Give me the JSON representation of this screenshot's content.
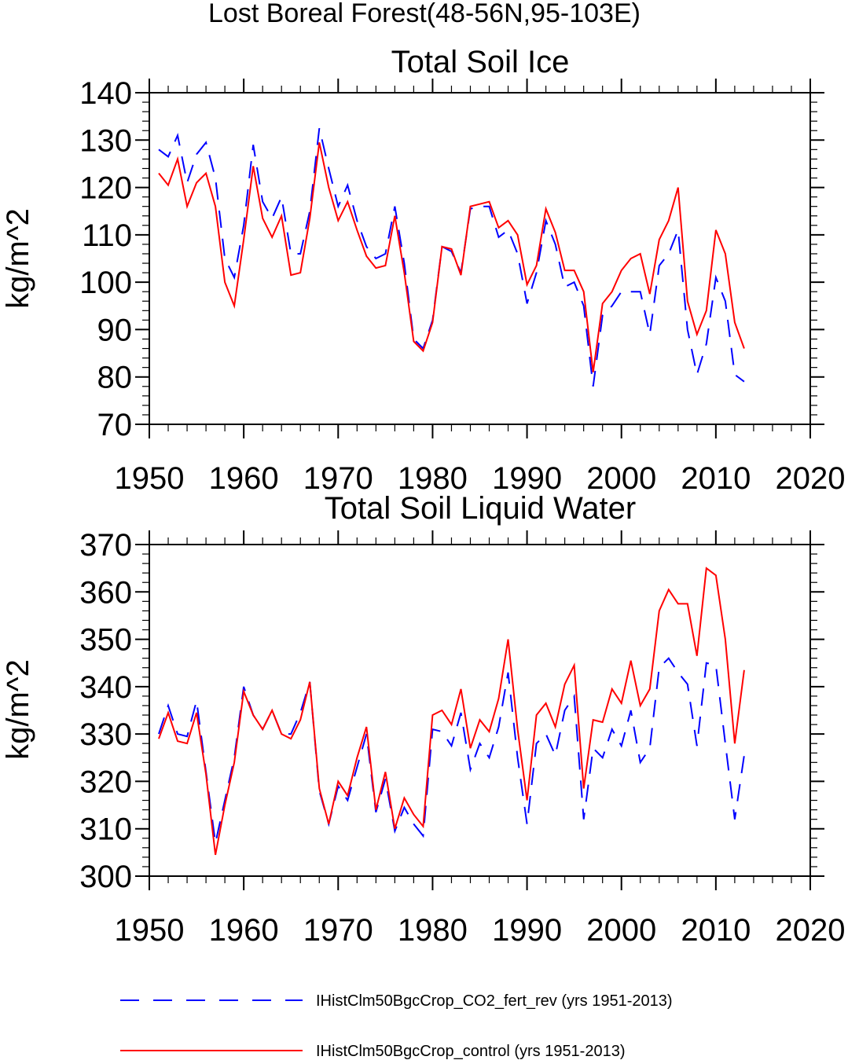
{
  "page_title": "Lost Boreal Forest(48-56N,95-103E)",
  "colors": {
    "series_fert": "#0000ff",
    "series_control": "#ff0000",
    "axis": "#000000"
  },
  "legend": [
    {
      "label": "IHistClm50BgcCrop_CO2_fert_rev (yrs 1951-2013)",
      "color": "#0000ff",
      "dash": "dashed"
    },
    {
      "label": "IHistClm50BgcCrop_control (yrs 1951-2013)",
      "color": "#ff0000",
      "dash": "solid"
    }
  ],
  "chart_data": [
    {
      "type": "line",
      "title": "Total Soil Ice",
      "ylabel": "kg/m^2",
      "xlabel": "",
      "xlim": [
        1950,
        2020
      ],
      "ylim": [
        70,
        140
      ],
      "xticks": [
        1950,
        1960,
        1970,
        1980,
        1990,
        2000,
        2010,
        2020
      ],
      "yticks": [
        70,
        80,
        90,
        100,
        110,
        120,
        130,
        140
      ],
      "x": [
        1951,
        1952,
        1953,
        1954,
        1955,
        1956,
        1957,
        1958,
        1959,
        1960,
        1961,
        1962,
        1963,
        1964,
        1965,
        1966,
        1967,
        1968,
        1969,
        1970,
        1971,
        1972,
        1973,
        1974,
        1975,
        1976,
        1977,
        1978,
        1979,
        1980,
        1981,
        1982,
        1983,
        1984,
        1985,
        1986,
        1987,
        1988,
        1989,
        1990,
        1991,
        1992,
        1993,
        1994,
        1995,
        1996,
        1997,
        1998,
        1999,
        2000,
        2001,
        2002,
        2003,
        2004,
        2005,
        2006,
        2007,
        2008,
        2009,
        2010,
        2011,
        2012,
        2013
      ],
      "series": [
        {
          "name": "IHistClm50BgcCrop_CO2_fert_rev (yrs 1951-2013)",
          "color": "#0000ff",
          "dash": "dashed",
          "values": [
            128,
            126.5,
            131,
            121,
            127,
            129.5,
            122,
            105,
            101,
            112,
            129,
            117,
            113.5,
            118,
            106,
            106,
            115,
            132.5,
            124,
            116,
            120.5,
            113,
            107.5,
            105,
            106,
            116,
            104,
            88,
            86,
            92,
            107.5,
            106.5,
            102,
            115.5,
            116,
            116,
            109.5,
            111,
            106,
            95.5,
            102,
            113,
            108,
            99,
            100,
            95,
            78,
            93,
            95,
            98,
            98,
            98,
            89,
            103.5,
            106,
            111,
            90,
            80.5,
            87,
            101,
            96,
            80.5,
            79
          ]
        },
        {
          "name": "IHistClm50BgcCrop_control (yrs 1951-2013)",
          "color": "#ff0000",
          "dash": "solid",
          "values": [
            123,
            120.5,
            126,
            116,
            121,
            123,
            116,
            100,
            95,
            109,
            124.5,
            113.5,
            109.5,
            114,
            101.5,
            102,
            113.5,
            129.5,
            120,
            113,
            117,
            111,
            105.5,
            103,
            103.5,
            114,
            102,
            87.5,
            85.5,
            91.5,
            107.5,
            107,
            101.5,
            116,
            116.5,
            117,
            111.5,
            113,
            110,
            99.5,
            103.5,
            115.5,
            110.5,
            102.5,
            102.5,
            98,
            81,
            95.5,
            98,
            102.5,
            105,
            106,
            97.5,
            109,
            113,
            120,
            96,
            89,
            94,
            111,
            106,
            91.5,
            86
          ]
        }
      ]
    },
    {
      "type": "line",
      "title": "Total Soil Liquid Water",
      "ylabel": "kg/m^2",
      "xlabel": "",
      "xlim": [
        1950,
        2020
      ],
      "ylim": [
        300,
        370
      ],
      "xticks": [
        1950,
        1960,
        1970,
        1980,
        1990,
        2000,
        2010,
        2020
      ],
      "yticks": [
        300,
        310,
        320,
        330,
        340,
        350,
        360,
        370
      ],
      "x": [
        1951,
        1952,
        1953,
        1954,
        1955,
        1956,
        1957,
        1958,
        1959,
        1960,
        1961,
        1962,
        1963,
        1964,
        1965,
        1966,
        1967,
        1968,
        1969,
        1970,
        1971,
        1972,
        1973,
        1974,
        1975,
        1976,
        1977,
        1978,
        1979,
        1980,
        1981,
        1982,
        1983,
        1984,
        1985,
        1986,
        1987,
        1988,
        1989,
        1990,
        1991,
        1992,
        1993,
        1994,
        1995,
        1996,
        1997,
        1998,
        1999,
        2000,
        2001,
        2002,
        2003,
        2004,
        2005,
        2006,
        2007,
        2008,
        2009,
        2010,
        2011,
        2012,
        2013
      ],
      "series": [
        {
          "name": "IHistClm50BgcCrop_CO2_fert_rev (yrs 1951-2013)",
          "color": "#0000ff",
          "dash": "dashed",
          "values": [
            330,
            336,
            330,
            329.5,
            337,
            322,
            307,
            316,
            325,
            340,
            334,
            331,
            335,
            330,
            330,
            334.5,
            341,
            318,
            311,
            319,
            316,
            323,
            330,
            313.5,
            320.5,
            309.5,
            314.5,
            311,
            308.5,
            331,
            330.5,
            327.5,
            334.5,
            322.5,
            328,
            325,
            331.5,
            343,
            325,
            311,
            328,
            330,
            325.5,
            335,
            338,
            312,
            327,
            325,
            331,
            327.5,
            335,
            324,
            327,
            344,
            346,
            343,
            340.5,
            327.5,
            345,
            344.5,
            328,
            312,
            325.5
          ]
        },
        {
          "name": "IHistClm50BgcCrop_control (yrs 1951-2013)",
          "color": "#ff0000",
          "dash": "solid",
          "values": [
            329,
            334.5,
            328.5,
            328,
            334.5,
            321.5,
            304.5,
            315,
            324,
            339,
            334,
            331,
            335,
            330,
            329,
            333,
            341,
            318.5,
            311,
            320,
            317,
            325,
            331.5,
            314,
            322,
            310,
            316.5,
            313,
            310.5,
            334,
            335,
            332,
            339.5,
            327,
            333,
            330.5,
            337.5,
            350,
            331,
            316,
            334,
            336.5,
            331.5,
            340.5,
            344.5,
            318.5,
            333,
            332.5,
            339.5,
            336.5,
            345.5,
            336,
            339.5,
            356,
            360.5,
            357.5,
            357.5,
            346.5,
            365,
            363.5,
            350,
            328,
            343.5
          ]
        }
      ]
    }
  ]
}
